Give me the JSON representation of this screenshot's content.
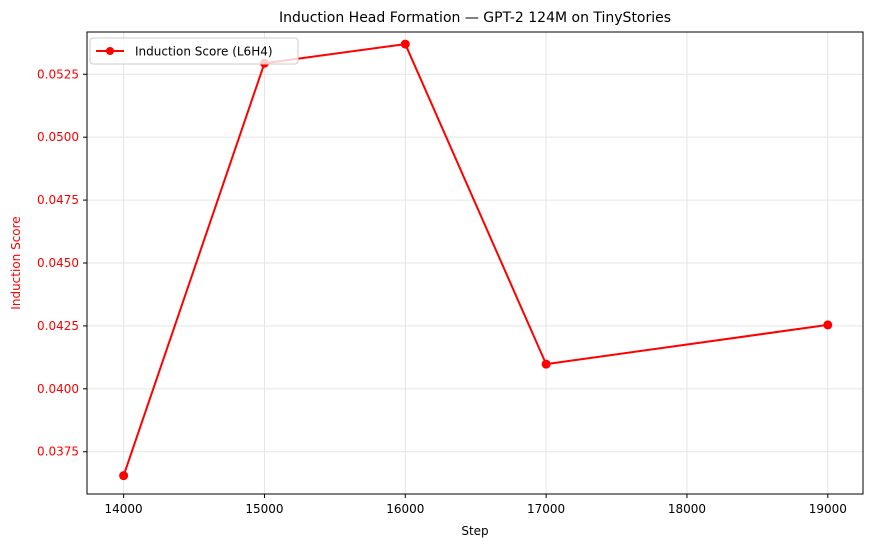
{
  "chart_data": {
    "type": "line",
    "title": "Induction Head Formation — GPT-2 124M on TinyStories",
    "xlabel": "Step",
    "ylabel": "Induction Score",
    "x": [
      14000,
      15000,
      16000,
      17000,
      19000
    ],
    "series": [
      {
        "name": "Induction Score (L6H4)",
        "color": "#ff0000",
        "marker": "circle",
        "values": [
          0.03655,
          0.05294,
          0.0537,
          0.04098,
          0.04254
        ]
      }
    ],
    "xlim": [
      13740,
      19250
    ],
    "ylim": [
      0.03582,
      0.05418
    ],
    "xticks": [
      14000,
      15000,
      16000,
      17000,
      18000,
      19000
    ],
    "xtick_labels": [
      "14000",
      "15000",
      "16000",
      "17000",
      "18000",
      "19000"
    ],
    "yticks": [
      0.0375,
      0.04,
      0.0425,
      0.045,
      0.0475,
      0.05,
      0.0525
    ],
    "ytick_labels": [
      "0.0375",
      "0.0400",
      "0.0425",
      "0.0450",
      "0.0475",
      "0.0500",
      "0.0525"
    ],
    "ylabel_color": "#ff0000",
    "ytick_color": "#ff0000",
    "grid": true,
    "legend_position": "upper left"
  }
}
